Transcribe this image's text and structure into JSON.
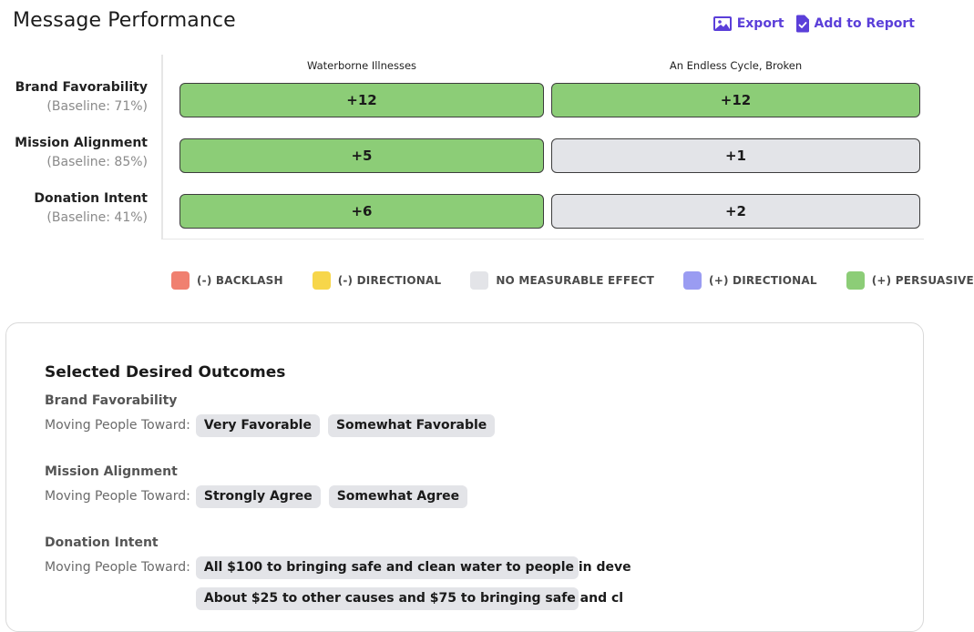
{
  "header": {
    "title": "Message Performance",
    "export_label": "Export",
    "add_to_report_label": "Add to Report"
  },
  "grid": {
    "columns": [
      "Waterborne Illnesses",
      "An Endless Cycle, Broken"
    ],
    "rows": [
      {
        "metric": "Brand Favorability",
        "baseline": "(Baseline: 71%)",
        "values": [
          "+12",
          "+12"
        ],
        "effects": [
          "persuasive",
          "persuasive"
        ]
      },
      {
        "metric": "Mission Alignment",
        "baseline": "(Baseline: 85%)",
        "values": [
          "+5",
          "+1"
        ],
        "effects": [
          "persuasive",
          "none"
        ]
      },
      {
        "metric": "Donation Intent",
        "baseline": "(Baseline: 41%)",
        "values": [
          "+6",
          "+2"
        ],
        "effects": [
          "persuasive",
          "none"
        ]
      }
    ]
  },
  "legend": [
    {
      "label": "(-) BACKLASH",
      "color": "#f08070"
    },
    {
      "label": "(-) DIRECTIONAL",
      "color": "#f7d64a"
    },
    {
      "label": "NO MEASURABLE EFFECT",
      "color": "#e3e4e8"
    },
    {
      "label": "(+) DIRECTIONAL",
      "color": "#9a9cf2"
    },
    {
      "label": "(+) PERSUASIVE",
      "color": "#8ccd77"
    }
  ],
  "outcomes": {
    "title": "Selected Desired Outcomes",
    "toward_label": "Moving People Toward:",
    "groups": [
      {
        "name": "Brand Favorability",
        "chips": [
          "Very Favorable",
          "Somewhat Favorable"
        ]
      },
      {
        "name": "Mission Alignment",
        "chips": [
          "Strongly Agree",
          "Somewhat Agree"
        ]
      },
      {
        "name": "Donation Intent",
        "chips": [
          "All $100 to bringing safe and clean water to people in deve",
          "About $25 to other causes and $75 to bringing safe and cl"
        ]
      }
    ]
  },
  "colors": {
    "accent": "#5b3fd9",
    "persuasive": "#8ccd77",
    "no_effect": "#e3e4e8"
  }
}
